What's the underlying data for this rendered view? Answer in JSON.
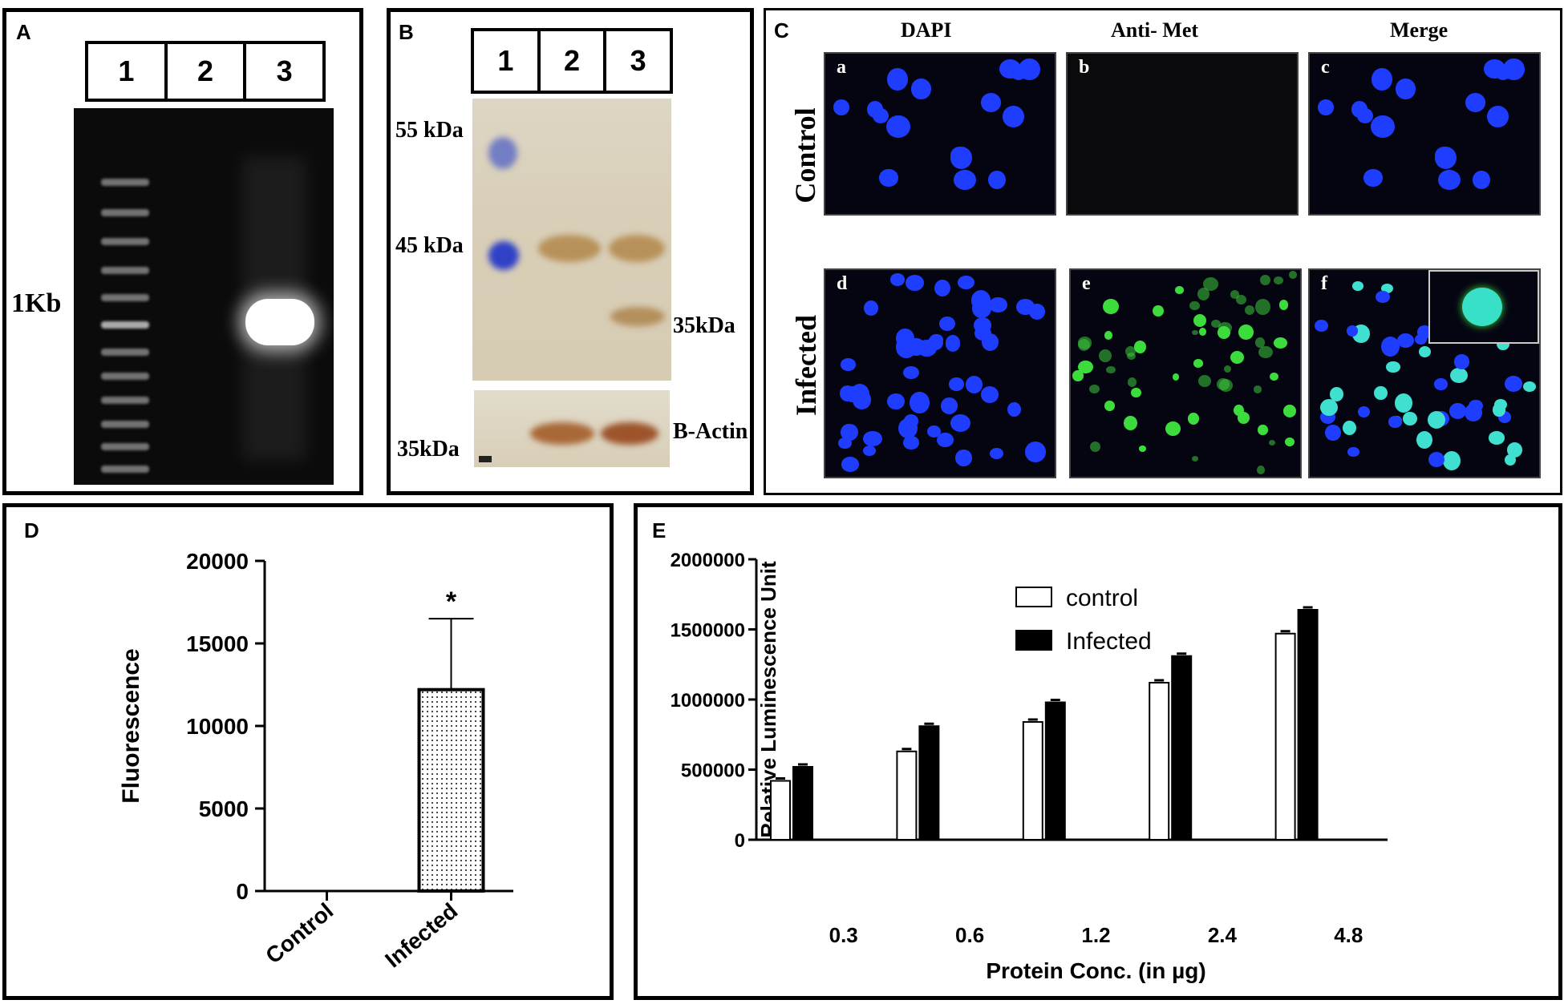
{
  "panels": {
    "a": {
      "label": "A",
      "lanes": [
        "1",
        "2",
        "3"
      ],
      "marker": "1Kb"
    },
    "b": {
      "label": "B",
      "lanes": [
        "1",
        "2",
        "3"
      ],
      "mw_55": "55 kDa",
      "mw_45": "45 kDa",
      "band_35": "35kDa",
      "actin_mw": "35kDa",
      "actin_label": "B-Actin"
    },
    "c": {
      "label": "C",
      "col_dapi": "DAPI",
      "col_met": "Anti- Met",
      "col_merge": "Merge",
      "row_control": "Control",
      "row_infected": "Infected",
      "tags": [
        "a",
        "b",
        "c",
        "d",
        "e",
        "f"
      ]
    },
    "d": {
      "label": "D"
    },
    "e": {
      "label": "E"
    }
  },
  "colors": {
    "dapi_blue": "#1f3dff",
    "met_green": "#3ddc3d",
    "merge_cyan": "#40e0d0"
  },
  "chart_data": [
    {
      "type": "bar",
      "panel": "D",
      "categories": [
        "Control",
        "Infected"
      ],
      "values": [
        0,
        12200
      ],
      "error": [
        0,
        4300
      ],
      "significance": [
        "",
        "*"
      ],
      "xlabel": "",
      "ylabel": "Fluorescence",
      "ylim": [
        0,
        20000
      ],
      "yticks": [
        "0",
        "5000",
        "10000",
        "15000",
        "20000"
      ],
      "pattern": "dotted"
    },
    {
      "type": "bar",
      "panel": "E",
      "categories": [
        "0.3",
        "0.6",
        "1.2",
        "2.4",
        "4.8"
      ],
      "series": [
        {
          "name": "control",
          "values": [
            420000,
            630000,
            840000,
            1120000,
            1470000
          ],
          "color": "#ffffff"
        },
        {
          "name": "Infected",
          "values": [
            520000,
            810000,
            980000,
            1310000,
            1640000
          ],
          "color": "#000000"
        }
      ],
      "xlabel": "Protein Conc. (in µg)",
      "ylabel": "Relative Luminescence Unit",
      "ylim": [
        0,
        2000000
      ],
      "yticks": [
        "0",
        "500000",
        "1000000",
        "1500000",
        "2000000"
      ],
      "legend": "top-left"
    }
  ]
}
